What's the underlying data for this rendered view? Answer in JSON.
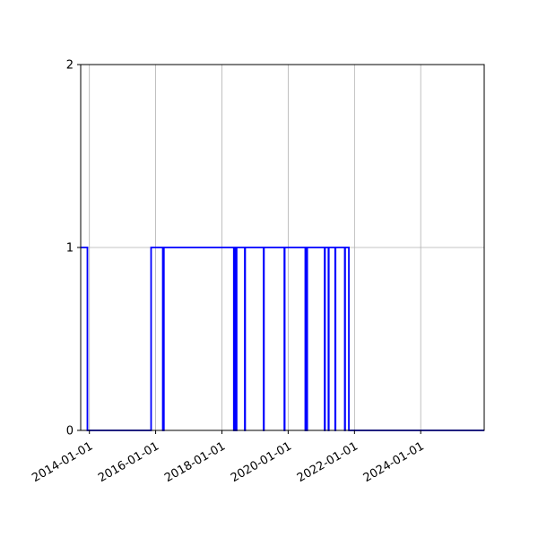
{
  "chart_data": {
    "type": "line",
    "drawstyle": "steps-post",
    "title": "",
    "xlabel": "",
    "ylabel": "",
    "xlim": [
      "2013-09-27",
      "2025-12-01"
    ],
    "ylim": [
      0,
      2
    ],
    "grid": true,
    "x_ticks": [
      "2014-01-01",
      "2016-01-01",
      "2018-01-01",
      "2020-01-01",
      "2022-01-01",
      "2024-01-01"
    ],
    "y_ticks": [
      0,
      1,
      2
    ],
    "series_color": "#0000ff",
    "points": [
      [
        "2013-10-01",
        1
      ],
      [
        "2013-12-10",
        0
      ],
      [
        "2015-11-12",
        1
      ],
      [
        "2016-03-20",
        0
      ],
      [
        "2016-04-01",
        1
      ],
      [
        "2018-05-12",
        0
      ],
      [
        "2018-05-16",
        1
      ],
      [
        "2018-05-22",
        0
      ],
      [
        "2018-05-26",
        1
      ],
      [
        "2018-06-08",
        0
      ],
      [
        "2018-06-12",
        1
      ],
      [
        "2018-09-10",
        0
      ],
      [
        "2018-09-14",
        1
      ],
      [
        "2019-04-05",
        0
      ],
      [
        "2019-04-09",
        1
      ],
      [
        "2019-11-20",
        0
      ],
      [
        "2019-11-24",
        1
      ],
      [
        "2020-07-08",
        0
      ],
      [
        "2020-07-12",
        1
      ],
      [
        "2020-07-25",
        0
      ],
      [
        "2020-07-29",
        1
      ],
      [
        "2021-02-06",
        0
      ],
      [
        "2021-02-10",
        1
      ],
      [
        "2021-03-20",
        0
      ],
      [
        "2021-03-24",
        1
      ],
      [
        "2021-06-02",
        0
      ],
      [
        "2021-06-06",
        1
      ],
      [
        "2021-09-16",
        0
      ],
      [
        "2021-09-20",
        1
      ],
      [
        "2021-10-31",
        0
      ],
      [
        "2025-12-01",
        0
      ]
    ]
  }
}
